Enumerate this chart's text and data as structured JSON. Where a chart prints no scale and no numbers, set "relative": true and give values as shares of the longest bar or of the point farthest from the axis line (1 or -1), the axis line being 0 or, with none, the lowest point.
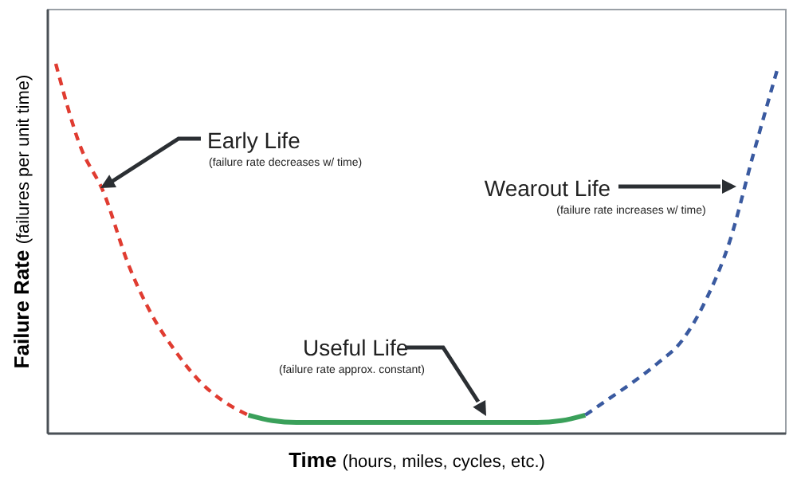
{
  "chart_data": {
    "type": "line",
    "relative": true,
    "xlabel": "Time (hours, miles, cycles, etc.)",
    "ylabel": "Failure Rate (failures per unit time)",
    "categories": [
      null,
      null,
      null,
      null,
      null,
      null,
      null,
      null,
      null,
      null,
      null,
      null,
      null,
      null,
      null,
      null,
      null,
      null,
      null,
      null,
      null,
      null,
      null,
      null,
      null,
      null,
      null,
      null,
      null,
      null,
      null
    ],
    "series": [
      {
        "color": "#e03c31",
        "line_style": "dashed",
        "values": [
          1.0,
          0.78,
          0.65,
          0.46,
          0.32,
          0.22,
          0.14,
          0.086,
          0.05,
          null,
          null,
          null,
          null,
          null,
          null,
          null,
          null,
          null,
          null,
          null,
          null,
          null,
          null,
          null,
          null,
          null,
          null,
          null,
          null,
          null,
          null
        ]
      },
      {
        "color": "#3aa05a",
        "line_style": "solid",
        "values": [
          null,
          null,
          null,
          null,
          null,
          null,
          null,
          null,
          0.05,
          0.035,
          0.03,
          0.03,
          0.03,
          0.03,
          0.03,
          0.03,
          0.03,
          0.03,
          0.03,
          0.03,
          0.03,
          0.035,
          0.05,
          null,
          null,
          null,
          null,
          null,
          null,
          null,
          null
        ]
      },
      {
        "color": "#3a5aa0",
        "line_style": "dashed",
        "values": [
          null,
          null,
          null,
          null,
          null,
          null,
          null,
          null,
          null,
          null,
          null,
          null,
          null,
          null,
          null,
          null,
          null,
          null,
          null,
          null,
          null,
          null,
          0.05,
          0.095,
          0.14,
          0.19,
          0.25,
          0.36,
          0.52,
          0.76,
          0.99
        ]
      }
    ],
    "annotations": [
      "Early Life",
      "(failure rate decreases w/ time)",
      "Useful Life",
      "(failure rate approx. constant)",
      "Wearout Life",
      "(failure rate increases w/ time)"
    ]
  }
}
